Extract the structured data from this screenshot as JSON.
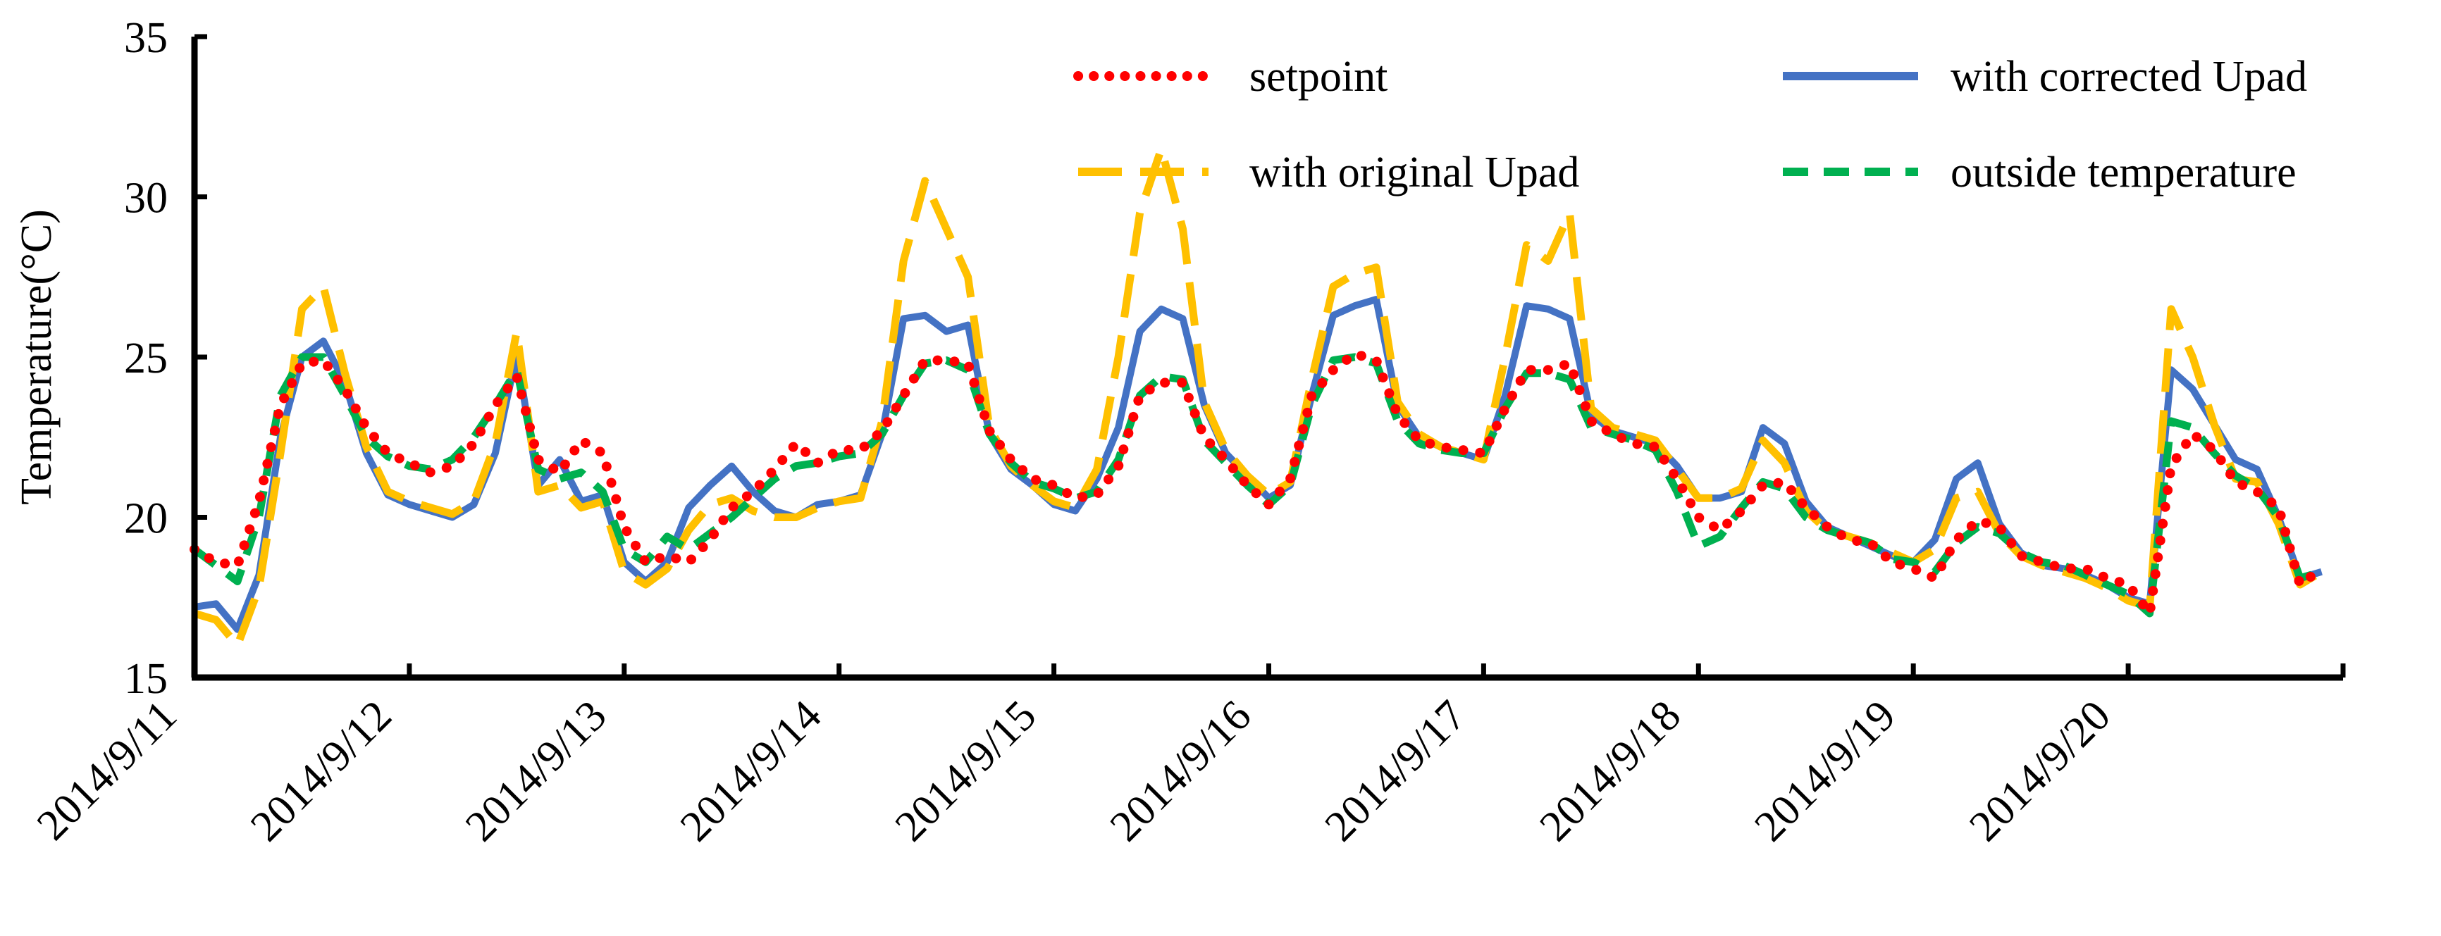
{
  "chart_data": {
    "type": "line",
    "title": "",
    "xlabel": "",
    "ylabel": "Temperature(°C)",
    "ylim": [
      15,
      35
    ],
    "yticks": [
      "15",
      "20",
      "25",
      "30",
      "35"
    ],
    "xlim": [
      0,
      10
    ],
    "x_tick_labels": [
      "2014/9/11",
      "2014/9/12",
      "2014/9/13",
      "2014/9/14",
      "2014/9/15",
      "2014/9/16",
      "2014/9/17",
      "2014/9/18",
      "2014/9/19",
      "2014/9/20"
    ],
    "legend": [
      "setpoint",
      "with corrected Upad",
      "with original Upad",
      "outside temperature"
    ],
    "legend_position": "top",
    "grid": false,
    "colors": {
      "setpoint": "#ff0000",
      "corrected": "#4472c4",
      "original": "#ffc000",
      "outside": "#00b050"
    },
    "series": [
      {
        "name": "setpoint",
        "x": [
          0,
          0.1,
          0.2,
          0.3,
          0.4,
          0.5,
          0.6,
          0.7,
          0.8,
          0.9,
          1.0,
          1.1,
          1.2,
          1.3,
          1.4,
          1.5,
          1.6,
          1.7,
          1.8,
          1.9,
          2.0,
          2.1,
          2.2,
          2.3,
          2.4,
          2.5,
          2.6,
          2.7,
          2.8,
          2.9,
          3.0,
          3.1,
          3.2,
          3.3,
          3.4,
          3.5,
          3.6,
          3.7,
          3.8,
          3.9,
          4.0,
          4.1,
          4.2,
          4.3,
          4.4,
          4.5,
          4.6,
          4.7,
          4.8,
          4.9,
          5.0,
          5.1,
          5.2,
          5.3,
          5.4,
          5.5,
          5.6,
          5.7,
          5.8,
          5.9,
          6.0,
          6.1,
          6.2,
          6.3,
          6.4,
          6.5,
          6.6,
          6.7,
          6.8,
          6.9,
          7.0,
          7.1,
          7.2,
          7.3,
          7.4,
          7.5,
          7.6,
          7.7,
          7.8,
          7.9,
          8.0,
          8.1,
          8.2,
          8.3,
          8.4,
          8.5,
          8.6,
          8.7,
          8.8,
          8.9,
          9.0,
          9.1,
          9.2,
          9.3,
          9.4,
          9.5,
          9.6,
          9.7,
          9.8,
          9.9
        ],
        "values": [
          19.0,
          18.6,
          18.5,
          20.5,
          23.5,
          24.8,
          24.9,
          24.0,
          22.8,
          22.0,
          21.7,
          21.4,
          21.6,
          22.3,
          23.5,
          24.4,
          21.8,
          21.4,
          22.4,
          22.0,
          19.7,
          18.6,
          18.8,
          18.6,
          19.3,
          20.3,
          20.8,
          21.5,
          22.3,
          21.7,
          22.1,
          22.1,
          22.7,
          23.8,
          24.9,
          24.9,
          24.8,
          22.7,
          21.8,
          21.2,
          21.0,
          20.6,
          20.7,
          21.6,
          23.8,
          24.2,
          24.2,
          22.5,
          21.8,
          21.0,
          20.4,
          21.2,
          23.8,
          24.6,
          25.1,
          24.9,
          23.2,
          22.4,
          22.2,
          22.1,
          22.0,
          23.4,
          24.6,
          24.6,
          24.8,
          23.0,
          22.6,
          22.3,
          22.2,
          21.2,
          20.0,
          19.6,
          20.2,
          21.0,
          21.1,
          20.3,
          19.7,
          19.3,
          19.2,
          18.6,
          18.4,
          18.1,
          19.3,
          19.9,
          19.7,
          18.8,
          18.6,
          18.4,
          18.4,
          18.1,
          17.9,
          17.0,
          21.6,
          22.6,
          22.1,
          21.1,
          20.8,
          20.3,
          17.9,
          18.4
        ]
      },
      {
        "name": "with corrected Upad",
        "x": [
          0,
          0.1,
          0.2,
          0.3,
          0.4,
          0.5,
          0.6,
          0.7,
          0.8,
          0.9,
          1.0,
          1.1,
          1.2,
          1.3,
          1.4,
          1.5,
          1.6,
          1.7,
          1.8,
          1.9,
          2.0,
          2.1,
          2.2,
          2.3,
          2.4,
          2.5,
          2.6,
          2.7,
          2.8,
          2.9,
          3.0,
          3.1,
          3.2,
          3.3,
          3.4,
          3.5,
          3.6,
          3.7,
          3.8,
          3.9,
          4.0,
          4.1,
          4.2,
          4.3,
          4.4,
          4.5,
          4.6,
          4.7,
          4.8,
          4.9,
          5.0,
          5.1,
          5.2,
          5.3,
          5.4,
          5.5,
          5.6,
          5.7,
          5.8,
          5.9,
          6.0,
          6.1,
          6.2,
          6.3,
          6.4,
          6.5,
          6.6,
          6.7,
          6.8,
          6.9,
          7.0,
          7.1,
          7.2,
          7.3,
          7.4,
          7.5,
          7.6,
          7.7,
          7.8,
          7.9,
          8.0,
          8.1,
          8.2,
          8.3,
          8.4,
          8.5,
          8.6,
          8.7,
          8.8,
          8.9,
          9.0,
          9.1,
          9.2,
          9.3,
          9.4,
          9.5,
          9.6,
          9.7,
          9.8,
          9.9
        ],
        "values": [
          17.2,
          17.3,
          16.5,
          18.2,
          22.5,
          25.0,
          25.5,
          24.2,
          22.0,
          20.7,
          20.4,
          20.2,
          20.0,
          20.4,
          22.0,
          25.1,
          21.0,
          21.8,
          20.5,
          20.7,
          18.6,
          18.0,
          18.6,
          20.3,
          21.0,
          21.6,
          20.8,
          20.2,
          20.0,
          20.4,
          20.5,
          20.7,
          22.6,
          26.2,
          26.3,
          25.8,
          26.0,
          22.6,
          21.5,
          21.0,
          20.4,
          20.2,
          21.2,
          22.8,
          25.8,
          26.5,
          26.2,
          23.5,
          22.0,
          21.3,
          20.6,
          21.0,
          23.8,
          26.3,
          26.6,
          26.8,
          23.5,
          22.5,
          22.2,
          22.0,
          21.8,
          23.8,
          26.6,
          26.5,
          26.2,
          23.2,
          22.7,
          22.5,
          22.3,
          21.6,
          20.6,
          20.6,
          20.8,
          22.8,
          22.3,
          20.5,
          19.7,
          19.4,
          19.1,
          18.8,
          18.6,
          19.3,
          21.2,
          21.7,
          19.8,
          18.9,
          18.5,
          18.4,
          18.2,
          17.9,
          17.5,
          17.3,
          24.6,
          24.0,
          22.9,
          21.8,
          21.5,
          20.0,
          18.1,
          18.3
        ]
      },
      {
        "name": "with original Upad",
        "x": [
          0,
          0.1,
          0.2,
          0.3,
          0.4,
          0.5,
          0.6,
          0.7,
          0.8,
          0.9,
          1.0,
          1.1,
          1.2,
          1.3,
          1.4,
          1.5,
          1.6,
          1.7,
          1.8,
          1.9,
          2.0,
          2.1,
          2.2,
          2.3,
          2.4,
          2.5,
          2.6,
          2.7,
          2.8,
          2.9,
          3.0,
          3.1,
          3.2,
          3.3,
          3.4,
          3.5,
          3.6,
          3.7,
          3.8,
          3.9,
          4.0,
          4.1,
          4.2,
          4.3,
          4.4,
          4.5,
          4.6,
          4.7,
          4.8,
          4.9,
          5.0,
          5.1,
          5.2,
          5.3,
          5.4,
          5.5,
          5.6,
          5.7,
          5.8,
          5.9,
          6.0,
          6.1,
          6.2,
          6.3,
          6.4,
          6.5,
          6.6,
          6.7,
          6.8,
          6.9,
          7.0,
          7.1,
          7.2,
          7.3,
          7.4,
          7.5,
          7.6,
          7.7,
          7.8,
          7.9,
          8.0,
          8.1,
          8.2,
          8.3,
          8.4,
          8.5,
          8.6,
          8.7,
          8.8,
          8.9,
          9.0,
          9.1,
          9.2,
          9.3,
          9.4,
          9.5,
          9.6,
          9.7,
          9.8,
          9.9
        ],
        "values": [
          17.0,
          16.8,
          16.0,
          17.8,
          22.0,
          26.5,
          27.2,
          24.5,
          22.2,
          20.8,
          20.5,
          20.3,
          20.1,
          20.5,
          22.3,
          25.8,
          20.8,
          21.0,
          20.3,
          20.5,
          18.3,
          17.9,
          18.4,
          19.6,
          20.4,
          20.6,
          20.2,
          20.0,
          20.0,
          20.3,
          20.5,
          20.6,
          23.0,
          28.0,
          30.5,
          29.0,
          27.5,
          22.8,
          21.6,
          21.0,
          20.5,
          20.3,
          21.5,
          25.0,
          29.5,
          31.5,
          29.0,
          23.6,
          22.1,
          21.3,
          20.7,
          21.1,
          24.3,
          27.2,
          27.6,
          27.8,
          23.6,
          22.6,
          22.2,
          22.0,
          21.8,
          25.0,
          28.5,
          28.0,
          29.5,
          23.4,
          22.8,
          22.6,
          22.4,
          21.5,
          20.6,
          20.6,
          20.9,
          22.4,
          21.7,
          20.2,
          19.6,
          19.4,
          19.2,
          18.9,
          18.6,
          19.0,
          20.6,
          20.8,
          19.5,
          18.8,
          18.5,
          18.3,
          18.1,
          17.8,
          17.4,
          17.2,
          26.5,
          25.0,
          22.9,
          21.2,
          21.1,
          19.8,
          17.9,
          18.3
        ]
      },
      {
        "name": "outside temperature",
        "x": [
          0,
          0.1,
          0.2,
          0.3,
          0.4,
          0.5,
          0.6,
          0.7,
          0.8,
          0.9,
          1.0,
          1.1,
          1.2,
          1.3,
          1.4,
          1.5,
          1.6,
          1.7,
          1.8,
          1.9,
          2.0,
          2.1,
          2.2,
          2.3,
          2.4,
          2.5,
          2.6,
          2.7,
          2.8,
          2.9,
          3.0,
          3.1,
          3.2,
          3.3,
          3.4,
          3.5,
          3.6,
          3.7,
          3.8,
          3.9,
          4.0,
          4.1,
          4.2,
          4.3,
          4.4,
          4.5,
          4.6,
          4.7,
          4.8,
          4.9,
          5.0,
          5.1,
          5.2,
          5.3,
          5.4,
          5.5,
          5.6,
          5.7,
          5.8,
          5.9,
          6.0,
          6.1,
          6.2,
          6.3,
          6.4,
          6.5,
          6.6,
          6.7,
          6.8,
          6.9,
          7.0,
          7.1,
          7.2,
          7.3,
          7.4,
          7.5,
          7.6,
          7.7,
          7.8,
          7.9,
          8.0,
          8.1,
          8.2,
          8.3,
          8.4,
          8.5,
          8.6,
          8.7,
          8.8,
          8.9,
          9.0,
          9.1,
          9.2,
          9.3,
          9.4,
          9.5,
          9.6,
          9.7,
          9.8,
          9.9
        ],
        "values": [
          19.0,
          18.5,
          18.0,
          20.0,
          23.8,
          25.0,
          25.0,
          23.8,
          22.5,
          21.9,
          21.6,
          21.5,
          21.8,
          22.5,
          23.5,
          24.6,
          21.5,
          21.2,
          21.4,
          20.8,
          19.0,
          18.6,
          19.4,
          19.0,
          19.5,
          20.0,
          20.6,
          21.2,
          21.6,
          21.7,
          21.9,
          22.0,
          22.6,
          23.8,
          24.8,
          24.9,
          24.6,
          22.6,
          21.7,
          21.1,
          20.9,
          20.6,
          20.8,
          21.8,
          23.8,
          24.4,
          24.3,
          22.4,
          21.7,
          21.0,
          20.4,
          21.0,
          23.5,
          24.9,
          25.0,
          24.8,
          23.0,
          22.3,
          22.1,
          22.0,
          22.0,
          23.4,
          24.5,
          24.5,
          24.3,
          22.8,
          22.6,
          22.4,
          22.1,
          20.8,
          19.1,
          19.4,
          20.3,
          21.1,
          20.9,
          20.0,
          19.6,
          19.4,
          19.2,
          18.7,
          18.6,
          18.3,
          19.2,
          19.7,
          19.5,
          18.9,
          18.6,
          18.5,
          18.2,
          17.9,
          17.6,
          17.0,
          23.0,
          22.8,
          22.0,
          21.3,
          20.9,
          20.0,
          18.1,
          18.3
        ]
      }
    ]
  }
}
